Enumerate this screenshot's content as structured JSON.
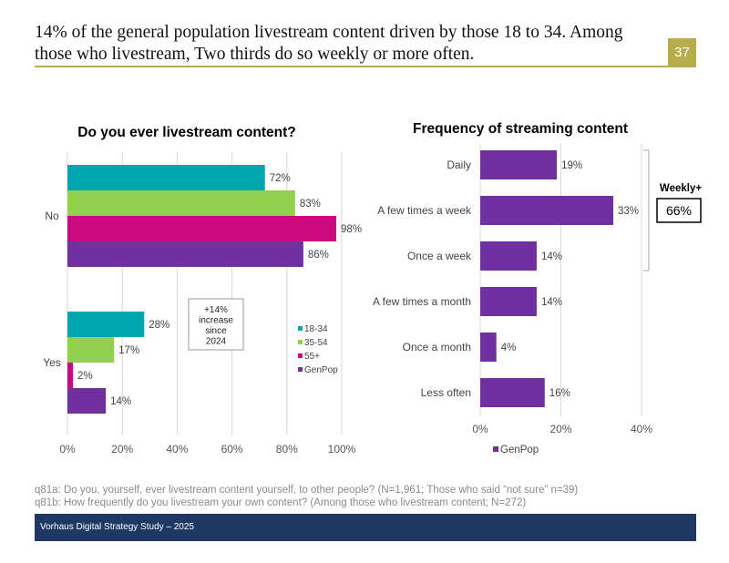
{
  "slide": {
    "title": "14% of the general population livestream content driven by those 18 to 34. Among those who livestream, Two thirds do so weekly or more often.",
    "page_number": "37",
    "accent_color": "#b7ad4a",
    "notes": [
      "q81a: Do you, yourself, ever livestream content yourself, to other people? (N=1,961; Those who said “not sure” n=39)",
      "q81b: How frequently do you livestream your own content? (Among those who livestream content; N=272)"
    ],
    "footer": "Vorhaus Digital Strategy Study – 2025"
  },
  "chart_data": [
    {
      "type": "bar",
      "orientation": "horizontal",
      "title": "Do you ever livestream content?",
      "categories": [
        "No",
        "Yes"
      ],
      "series": [
        {
          "name": "18-34",
          "color": "#00a6ad",
          "values": [
            72,
            28
          ]
        },
        {
          "name": "35-54",
          "color": "#92d050",
          "values": [
            83,
            17
          ]
        },
        {
          "name": "55+",
          "color": "#cc0a7f",
          "values": [
            98,
            2
          ]
        },
        {
          "name": "GenPop",
          "color": "#7030a0",
          "values": [
            86,
            14
          ]
        }
      ],
      "xlim": [
        0,
        100
      ],
      "xticks": [
        0,
        20,
        40,
        60,
        80,
        100
      ],
      "tick_suffix": "%",
      "grid": true,
      "legend": "right",
      "annotation": [
        "+14%",
        "increase",
        "since",
        "2024"
      ]
    },
    {
      "type": "bar",
      "orientation": "horizontal",
      "title": "Frequency of streaming content",
      "categories": [
        "Daily",
        "A few times a week",
        "Once a week",
        "A few times a month",
        "Once a month",
        "Less often"
      ],
      "series": [
        {
          "name": "GenPop",
          "color": "#7030a0",
          "values": [
            19,
            33,
            14,
            14,
            4,
            16
          ]
        }
      ],
      "xlim": [
        0,
        40
      ],
      "xticks": [
        0,
        20,
        40
      ],
      "tick_suffix": "%",
      "grid": true,
      "legend": "bottom",
      "bracket": {
        "label": "Weekly+",
        "value": "66%",
        "covers": [
          "Daily",
          "A few times a week",
          "Once a week"
        ]
      }
    }
  ]
}
